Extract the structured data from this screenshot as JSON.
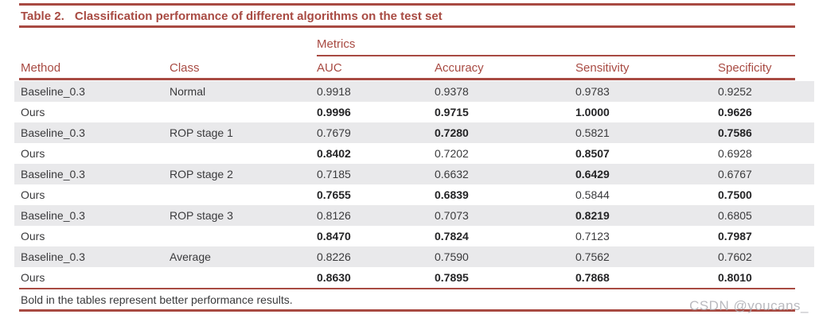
{
  "colors": {
    "accent": "#A84A42",
    "stripe": "#E9E9EB",
    "text": "#3A3A3C",
    "bold_text": "#242426",
    "watermark": "#AFAFB5"
  },
  "table": {
    "label": "Table 2.",
    "title": "Classification performance of different algorithms on the test set",
    "group_header": "Metrics",
    "columns": [
      "Method",
      "Class",
      "AUC",
      "Accuracy",
      "Sensitivity",
      "Specificity"
    ],
    "rows": [
      {
        "method": "Baseline_0.3",
        "class_label": "Normal",
        "values": [
          "0.9918",
          "0.9378",
          "0.9783",
          "0.9252"
        ],
        "bold": [
          false,
          false,
          false,
          false
        ]
      },
      {
        "method": "Ours",
        "class_label": "",
        "values": [
          "0.9996",
          "0.9715",
          "1.0000",
          "0.9626"
        ],
        "bold": [
          true,
          true,
          true,
          true
        ]
      },
      {
        "method": "Baseline_0.3",
        "class_label": "ROP stage 1",
        "values": [
          "0.7679",
          "0.7280",
          "0.5821",
          "0.7586"
        ],
        "bold": [
          false,
          true,
          false,
          true
        ]
      },
      {
        "method": "Ours",
        "class_label": "",
        "values": [
          "0.8402",
          "0.7202",
          "0.8507",
          "0.6928"
        ],
        "bold": [
          true,
          false,
          true,
          false
        ]
      },
      {
        "method": "Baseline_0.3",
        "class_label": "ROP stage 2",
        "values": [
          "0.7185",
          "0.6632",
          "0.6429",
          "0.6767"
        ],
        "bold": [
          false,
          false,
          true,
          false
        ]
      },
      {
        "method": "Ours",
        "class_label": "",
        "values": [
          "0.7655",
          "0.6839",
          "0.5844",
          "0.7500"
        ],
        "bold": [
          true,
          true,
          false,
          true
        ]
      },
      {
        "method": "Baseline_0.3",
        "class_label": "ROP stage 3",
        "values": [
          "0.8126",
          "0.7073",
          "0.8219",
          "0.6805"
        ],
        "bold": [
          false,
          false,
          true,
          false
        ]
      },
      {
        "method": "Ours",
        "class_label": "",
        "values": [
          "0.8470",
          "0.7824",
          "0.7123",
          "0.7987"
        ],
        "bold": [
          true,
          true,
          false,
          true
        ]
      },
      {
        "method": "Baseline_0.3",
        "class_label": "Average",
        "values": [
          "0.8226",
          "0.7590",
          "0.7562",
          "0.7602"
        ],
        "bold": [
          false,
          false,
          false,
          false
        ]
      },
      {
        "method": "Ours",
        "class_label": "",
        "values": [
          "0.8630",
          "0.7895",
          "0.7868",
          "0.8010"
        ],
        "bold": [
          true,
          true,
          true,
          true
        ]
      }
    ],
    "footnote": "Bold in the tables represent better performance results."
  },
  "watermark": "CSDN @youcans_"
}
